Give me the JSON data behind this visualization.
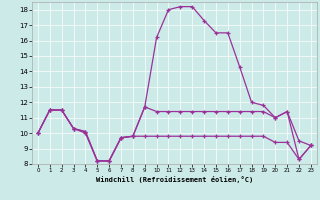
{
  "xlabel": "Windchill (Refroidissement éolien,°C)",
  "bg_color": "#cceae7",
  "line_color": "#993399",
  "ylim": [
    8,
    18.5
  ],
  "xlim": [
    -0.5,
    23.5
  ],
  "yticks": [
    8,
    9,
    10,
    11,
    12,
    13,
    14,
    15,
    16,
    17,
    18
  ],
  "xticks": [
    0,
    1,
    2,
    3,
    4,
    5,
    6,
    7,
    8,
    9,
    10,
    11,
    12,
    13,
    14,
    15,
    16,
    17,
    18,
    19,
    20,
    21,
    22,
    23
  ],
  "line1_x": [
    0,
    1,
    2,
    3,
    4,
    5,
    6,
    7,
    8,
    9,
    10,
    11,
    12,
    13,
    14,
    15,
    16,
    17,
    18,
    19,
    20,
    21,
    22,
    23
  ],
  "line1_y": [
    10.0,
    11.5,
    11.5,
    10.3,
    10.1,
    8.2,
    8.2,
    9.7,
    9.8,
    11.7,
    11.4,
    11.4,
    11.4,
    11.4,
    11.4,
    11.4,
    11.4,
    11.4,
    11.4,
    11.4,
    11.0,
    11.4,
    9.5,
    9.2
  ],
  "line2_x": [
    0,
    1,
    2,
    3,
    4,
    5,
    6,
    7,
    8,
    9,
    10,
    11,
    12,
    13,
    14,
    15,
    16,
    17,
    18,
    19,
    20,
    21,
    22,
    23
  ],
  "line2_y": [
    10.0,
    11.5,
    11.5,
    10.3,
    10.1,
    8.2,
    8.2,
    9.7,
    9.8,
    11.7,
    16.2,
    18.0,
    18.2,
    18.2,
    17.3,
    16.5,
    16.5,
    14.3,
    12.0,
    11.8,
    11.0,
    11.4,
    8.3,
    9.2
  ],
  "line3_x": [
    0,
    1,
    2,
    3,
    4,
    5,
    6,
    7,
    8,
    9,
    10,
    11,
    12,
    13,
    14,
    15,
    16,
    17,
    18,
    19,
    20,
    21,
    22,
    23
  ],
  "line3_y": [
    10.0,
    11.5,
    11.5,
    10.3,
    10.0,
    8.2,
    8.2,
    9.7,
    9.8,
    9.8,
    9.8,
    9.8,
    9.8,
    9.8,
    9.8,
    9.8,
    9.8,
    9.8,
    9.8,
    9.8,
    9.4,
    9.4,
    8.3,
    9.2
  ]
}
